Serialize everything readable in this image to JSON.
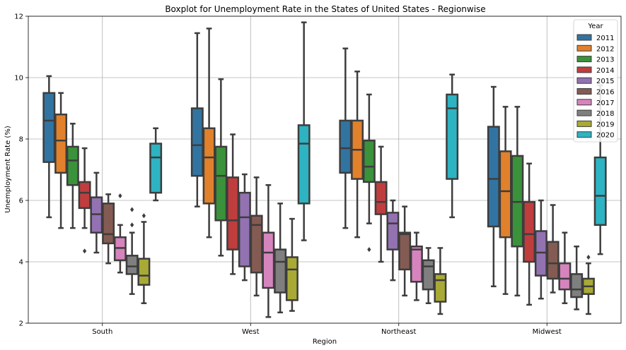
{
  "chart_data": {
    "type": "boxplot",
    "title": "Boxplot for Unemployment Rate in the States of United States - Regionwise",
    "xlabel": "Region",
    "ylabel": "Unemployment Rate (%)",
    "ylim": [
      2,
      12
    ],
    "yticks": [
      2,
      4,
      6,
      8,
      10,
      12
    ],
    "grid": true,
    "legend": {
      "title": "Year",
      "placement": "top-right"
    },
    "categories": [
      "South",
      "West",
      "Northeast",
      "Midwest"
    ],
    "series": [
      {
        "name": "2011",
        "color": "#3274a1",
        "boxes": [
          {
            "whislo": 5.45,
            "q1": 7.25,
            "med": 8.6,
            "q3": 9.5,
            "whishi": 10.05,
            "fliers": []
          },
          {
            "whislo": 5.8,
            "q1": 6.8,
            "med": 7.8,
            "q3": 9.0,
            "whishi": 11.45,
            "fliers": []
          },
          {
            "whislo": 5.1,
            "q1": 6.9,
            "med": 7.7,
            "q3": 8.6,
            "whishi": 10.95,
            "fliers": []
          },
          {
            "whislo": 3.2,
            "q1": 5.15,
            "med": 6.7,
            "q3": 8.4,
            "whishi": 9.7,
            "fliers": []
          }
        ]
      },
      {
        "name": "2012",
        "color": "#e1812c",
        "boxes": [
          {
            "whislo": 5.1,
            "q1": 6.9,
            "med": 7.95,
            "q3": 8.8,
            "whishi": 9.5,
            "fliers": []
          },
          {
            "whislo": 4.8,
            "q1": 5.9,
            "med": 7.4,
            "q3": 8.35,
            "whishi": 11.6,
            "fliers": []
          },
          {
            "whislo": 4.8,
            "q1": 6.7,
            "med": 7.65,
            "q3": 8.6,
            "whishi": 10.2,
            "fliers": []
          },
          {
            "whislo": 2.95,
            "q1": 4.8,
            "med": 6.3,
            "q3": 7.6,
            "whishi": 9.05,
            "fliers": []
          }
        ]
      },
      {
        "name": "2013",
        "color": "#3a923a",
        "boxes": [
          {
            "whislo": 5.1,
            "q1": 6.5,
            "med": 7.3,
            "q3": 7.75,
            "whishi": 8.5,
            "fliers": []
          },
          {
            "whislo": 4.2,
            "q1": 5.35,
            "med": 6.8,
            "q3": 7.75,
            "whishi": 9.95,
            "fliers": []
          },
          {
            "whislo": 5.25,
            "q1": 6.6,
            "med": 7.1,
            "q3": 7.95,
            "whishi": 9.45,
            "fliers": [
              4.4
            ]
          },
          {
            "whislo": 2.9,
            "q1": 4.5,
            "med": 5.95,
            "q3": 7.45,
            "whishi": 9.05,
            "fliers": []
          }
        ]
      },
      {
        "name": "2014",
        "color": "#c03d3e",
        "boxes": [
          {
            "whislo": 5.1,
            "q1": 5.75,
            "med": 6.25,
            "q3": 6.6,
            "whishi": 7.7,
            "fliers": [
              4.35
            ]
          },
          {
            "whislo": 3.6,
            "q1": 4.4,
            "med": 5.35,
            "q3": 6.75,
            "whishi": 8.15,
            "fliers": []
          },
          {
            "whislo": 4.0,
            "q1": 5.55,
            "med": 5.95,
            "q3": 6.6,
            "whishi": 7.75,
            "fliers": []
          },
          {
            "whislo": 2.6,
            "q1": 4.0,
            "med": 4.9,
            "q3": 5.95,
            "whishi": 7.2,
            "fliers": []
          }
        ]
      },
      {
        "name": "2015",
        "color": "#9372b2",
        "boxes": [
          {
            "whislo": 4.3,
            "q1": 4.95,
            "med": 5.55,
            "q3": 6.1,
            "whishi": 6.9,
            "fliers": []
          },
          {
            "whislo": 3.4,
            "q1": 3.85,
            "med": 5.45,
            "q3": 6.25,
            "whishi": 6.85,
            "fliers": []
          },
          {
            "whislo": 3.4,
            "q1": 4.4,
            "med": 5.25,
            "q3": 5.6,
            "whishi": 6.0,
            "fliers": []
          },
          {
            "whislo": 2.8,
            "q1": 3.55,
            "med": 4.3,
            "q3": 5.0,
            "whishi": 6.0,
            "fliers": []
          }
        ]
      },
      {
        "name": "2016",
        "color": "#845b53",
        "boxes": [
          {
            "whislo": 3.95,
            "q1": 4.6,
            "med": 4.9,
            "q3": 5.9,
            "whishi": 6.2,
            "fliers": []
          },
          {
            "whislo": 2.9,
            "q1": 3.65,
            "med": 5.2,
            "q3": 5.5,
            "whishi": 6.75,
            "fliers": []
          },
          {
            "whislo": 2.9,
            "q1": 3.75,
            "med": 4.9,
            "q3": 4.95,
            "whishi": 5.8,
            "fliers": []
          },
          {
            "whislo": 3.0,
            "q1": 3.45,
            "med": 3.95,
            "q3": 4.65,
            "whishi": 5.85,
            "fliers": []
          }
        ]
      },
      {
        "name": "2017",
        "color": "#d684bd",
        "boxes": [
          {
            "whislo": 3.65,
            "q1": 4.05,
            "med": 4.45,
            "q3": 4.8,
            "whishi": 5.2,
            "fliers": [
              6.15
            ]
          },
          {
            "whislo": 2.2,
            "q1": 3.15,
            "med": 4.3,
            "q3": 4.95,
            "whishi": 6.5,
            "fliers": []
          },
          {
            "whislo": 2.75,
            "q1": 3.35,
            "med": 4.4,
            "q3": 4.5,
            "whishi": 4.95,
            "fliers": []
          },
          {
            "whislo": 2.65,
            "q1": 3.1,
            "med": 3.45,
            "q3": 3.95,
            "whishi": 4.95,
            "fliers": []
          }
        ]
      },
      {
        "name": "2018",
        "color": "#7f7f7f",
        "boxes": [
          {
            "whislo": 2.95,
            "q1": 3.6,
            "med": 3.85,
            "q3": 4.2,
            "whishi": 4.95,
            "fliers": [
              5.7,
              5.2
            ]
          },
          {
            "whislo": 2.35,
            "q1": 3.0,
            "med": 4.0,
            "q3": 4.4,
            "whishi": 5.9,
            "fliers": []
          },
          {
            "whislo": 2.65,
            "q1": 3.1,
            "med": 3.85,
            "q3": 4.05,
            "whishi": 4.45,
            "fliers": []
          },
          {
            "whislo": 2.45,
            "q1": 2.85,
            "med": 3.1,
            "q3": 3.6,
            "whishi": 4.5,
            "fliers": []
          }
        ]
      },
      {
        "name": "2019",
        "color": "#a9aa35",
        "boxes": [
          {
            "whislo": 2.65,
            "q1": 3.25,
            "med": 3.55,
            "q3": 4.1,
            "whishi": 5.3,
            "fliers": [
              5.5
            ]
          },
          {
            "whislo": 2.4,
            "q1": 2.75,
            "med": 3.75,
            "q3": 4.15,
            "whishi": 5.4,
            "fliers": []
          },
          {
            "whislo": 2.3,
            "q1": 2.7,
            "med": 3.4,
            "q3": 3.6,
            "whishi": 4.45,
            "fliers": []
          },
          {
            "whislo": 2.3,
            "q1": 2.95,
            "med": 3.2,
            "q3": 3.45,
            "whishi": 3.95,
            "fliers": [
              4.15
            ]
          }
        ]
      },
      {
        "name": "2020",
        "color": "#2eb3c2",
        "boxes": [
          {
            "whislo": 6.0,
            "q1": 6.25,
            "med": 7.4,
            "q3": 7.85,
            "whishi": 8.35,
            "fliers": []
          },
          {
            "whislo": 4.7,
            "q1": 5.9,
            "med": 7.85,
            "q3": 8.45,
            "whishi": 11.8,
            "fliers": []
          },
          {
            "whislo": 5.45,
            "q1": 6.7,
            "med": 9.0,
            "q3": 9.45,
            "whishi": 10.1,
            "fliers": []
          },
          {
            "whislo": 4.25,
            "q1": 5.2,
            "med": 6.15,
            "q3": 7.4,
            "whishi": 9.75,
            "fliers": []
          }
        ]
      }
    ]
  }
}
